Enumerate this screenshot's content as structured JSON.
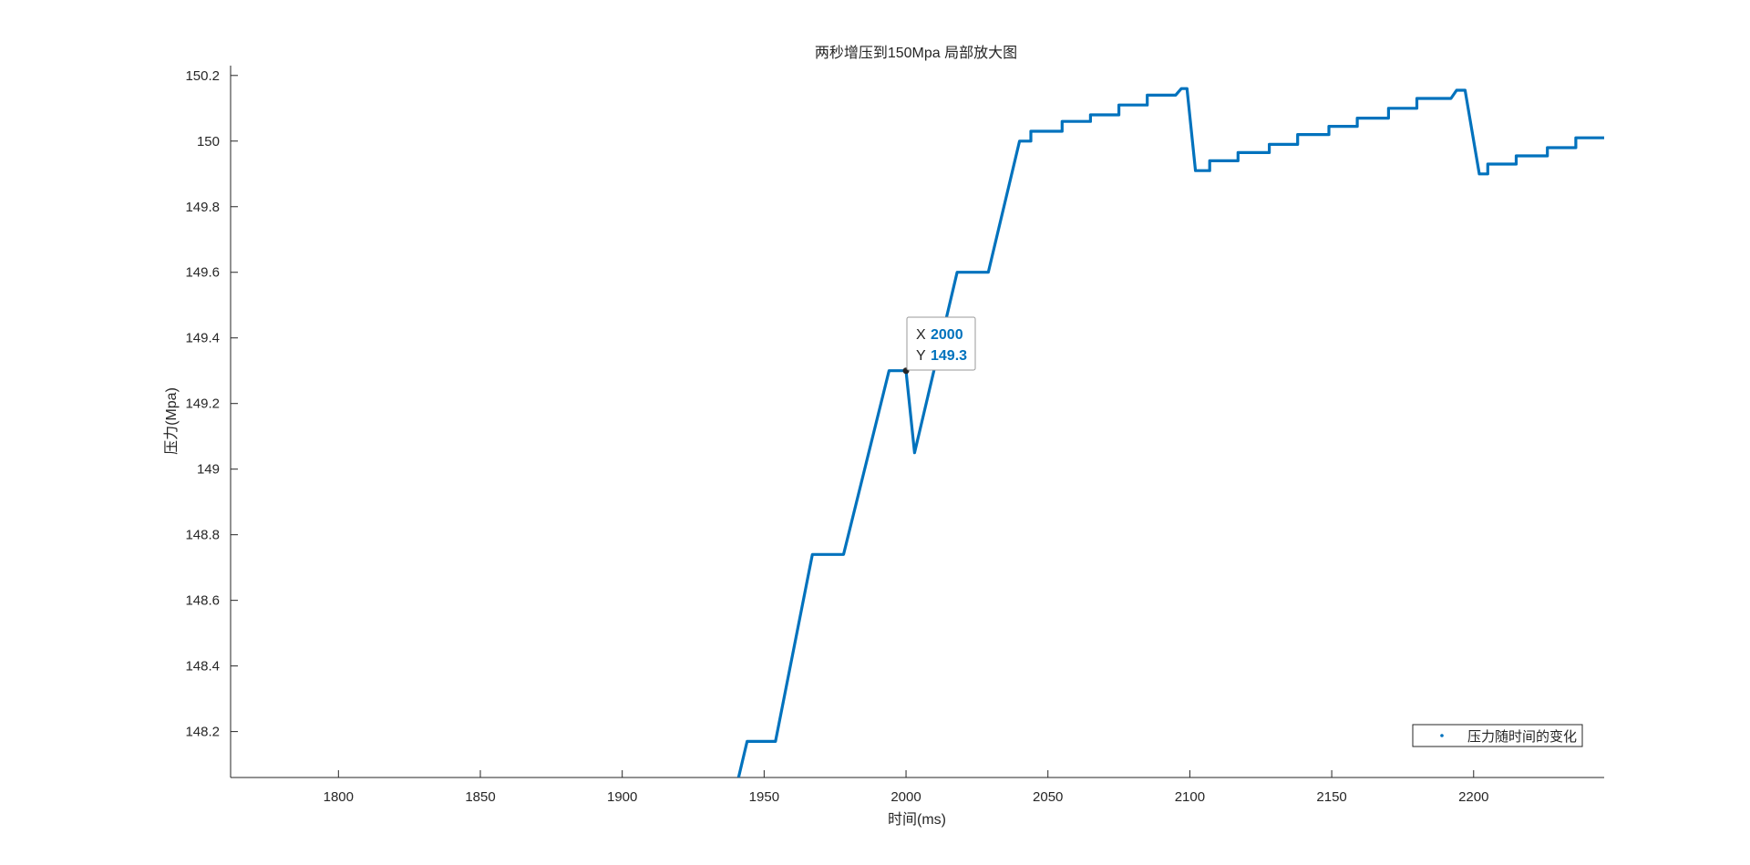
{
  "chart_data": {
    "type": "line",
    "title": "两秒增压到150Mpa 局部放大图",
    "xlabel": "时间(ms)",
    "ylabel": "压力(Mpa)",
    "xlim": [
      1762,
      2246
    ],
    "ylim": [
      148.06,
      150.23
    ],
    "xticks": [
      1800,
      1850,
      1900,
      1950,
      2000,
      2050,
      2100,
      2150,
      2200
    ],
    "yticks": [
      148.2,
      148.4,
      148.6,
      148.8,
      149,
      149.2,
      149.4,
      149.6,
      149.8,
      150,
      150.2
    ],
    "ytick_labels": [
      "148.2",
      "148.4",
      "148.6",
      "148.8",
      "149",
      "149.2",
      "149.4",
      "149.6",
      "149.8",
      "150",
      "150.2"
    ],
    "grid": false,
    "legend": {
      "position": "bottom-right",
      "entries": [
        "压力随时间的变化"
      ]
    },
    "series": [
      {
        "name": "压力随时间的变化",
        "color": "#0072BD",
        "x": [
          1941,
          1944,
          1954,
          1967,
          1978,
          1994,
          2000,
          2003,
          2018,
          2029,
          2040,
          2044,
          2044,
          2055,
          2055,
          2065,
          2065,
          2075,
          2075,
          2085,
          2085,
          2095,
          2097,
          2099,
          2102,
          2107,
          2107,
          2117,
          2117,
          2128,
          2128,
          2138,
          2138,
          2149,
          2149,
          2159,
          2159,
          2170,
          2170,
          2180,
          2180,
          2192,
          2194,
          2197,
          2202,
          2205,
          2205,
          2215,
          2215,
          2226,
          2226,
          2236,
          2236,
          2246
        ],
        "y": [
          148.06,
          148.17,
          148.17,
          148.74,
          148.74,
          149.3,
          149.3,
          149.05,
          149.6,
          149.6,
          150.0,
          150.0,
          150.03,
          150.03,
          150.06,
          150.06,
          150.08,
          150.08,
          150.11,
          150.11,
          150.14,
          150.14,
          150.16,
          150.16,
          149.91,
          149.91,
          149.94,
          149.94,
          149.965,
          149.965,
          149.99,
          149.99,
          150.02,
          150.02,
          150.045,
          150.045,
          150.07,
          150.07,
          150.1,
          150.1,
          150.13,
          150.13,
          150.155,
          150.155,
          149.9,
          149.9,
          149.93,
          149.93,
          149.955,
          149.955,
          149.98,
          149.98,
          150.01,
          150.01
        ]
      }
    ],
    "datatip": {
      "x_label": "X",
      "x_value": "2000",
      "y_label": "Y",
      "y_value": "149.3",
      "x": 2000,
      "y": 149.3
    }
  }
}
